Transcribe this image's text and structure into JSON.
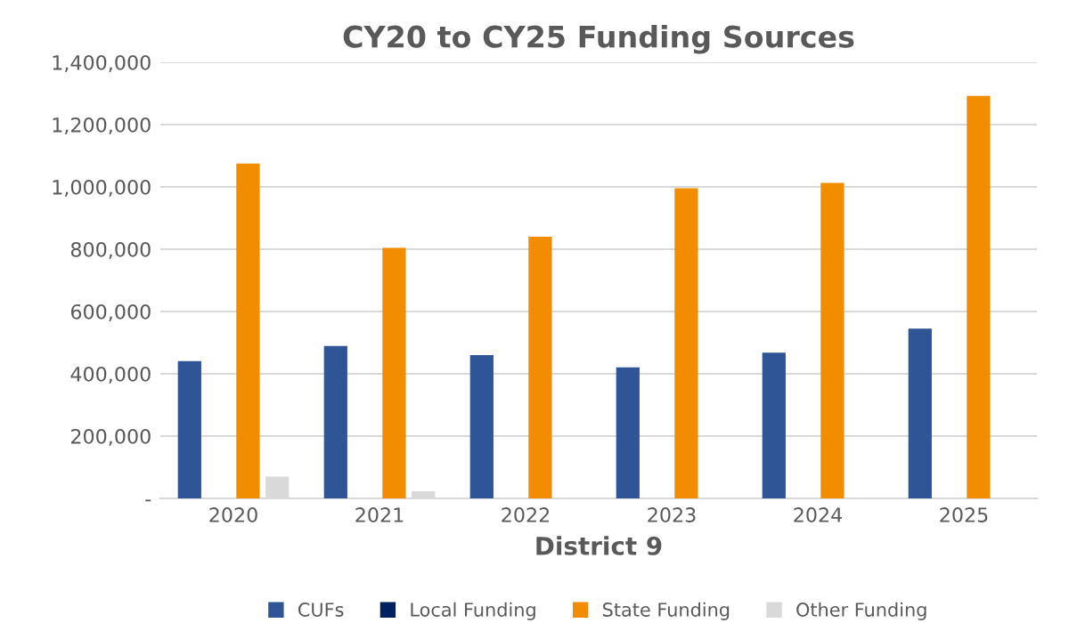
{
  "chart_data": {
    "type": "bar",
    "title": "CY20 to CY25 Funding Sources",
    "xlabel": "District 9",
    "categories": [
      "2020",
      "2021",
      "2022",
      "2023",
      "2024",
      "2025"
    ],
    "series": [
      {
        "name": "CUFs",
        "color": "#2f5597",
        "values": [
          441000,
          489000,
          460000,
          421000,
          468000,
          545000
        ]
      },
      {
        "name": "Local Funding",
        "color": "#002060",
        "values": [
          0,
          0,
          0,
          0,
          0,
          0
        ]
      },
      {
        "name": "State Funding",
        "color": "#f28c00",
        "values": [
          1075000,
          804000,
          840000,
          996000,
          1013000,
          1292000
        ]
      },
      {
        "name": "Other Funding",
        "color": "#d9d9d9",
        "values": [
          70000,
          23000,
          0,
          0,
          0,
          0
        ]
      }
    ],
    "ylim": [
      0,
      1400000
    ],
    "yticks": [
      {
        "value": 0,
        "label": "-"
      },
      {
        "value": 200000,
        "label": "200,000"
      },
      {
        "value": 400000,
        "label": "400,000"
      },
      {
        "value": 600000,
        "label": "600,000"
      },
      {
        "value": 800000,
        "label": "800,000"
      },
      {
        "value": 1000000,
        "label": "1,000,000"
      },
      {
        "value": 1200000,
        "label": "1,200,000"
      },
      {
        "value": 1400000,
        "label": "1,400,000"
      }
    ],
    "grid": "y",
    "legend": "bottom"
  }
}
